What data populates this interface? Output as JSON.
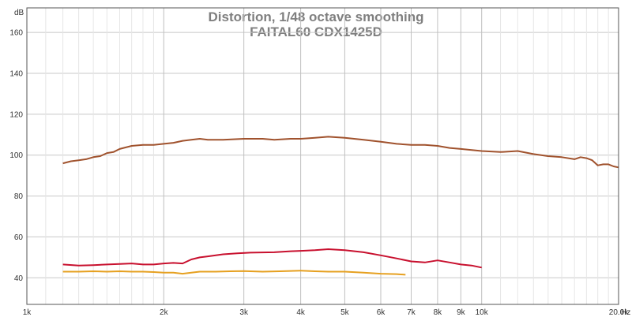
{
  "chart_data": {
    "type": "line",
    "title": "Distortion, 1/48 octave smoothing",
    "subtitle": "FAITAL60 CDX1425D",
    "ylabel": "dB",
    "xunit": "Hz",
    "xscale": "log",
    "xlim": [
      1000,
      20000
    ],
    "ylim": [
      27,
      172
    ],
    "grid": true,
    "yticks": [
      40,
      60,
      80,
      100,
      120,
      140,
      160
    ],
    "xticks": [
      {
        "value": 1000,
        "label": "1k"
      },
      {
        "value": 2000,
        "label": "2k"
      },
      {
        "value": 3000,
        "label": "3k"
      },
      {
        "value": 4000,
        "label": "4k"
      },
      {
        "value": 5000,
        "label": "5k"
      },
      {
        "value": 6000,
        "label": "6k"
      },
      {
        "value": 7000,
        "label": "7k"
      },
      {
        "value": 8000,
        "label": "8k"
      },
      {
        "value": 9000,
        "label": "9k"
      },
      {
        "value": 10000,
        "label": "10k"
      },
      {
        "value": 20000,
        "label": "20.0k"
      }
    ],
    "series": [
      {
        "color": "#a0522d",
        "points": [
          [
            1200,
            96
          ],
          [
            1250,
            97
          ],
          [
            1300,
            97.5
          ],
          [
            1350,
            98
          ],
          [
            1400,
            99
          ],
          [
            1450,
            99.5
          ],
          [
            1500,
            101
          ],
          [
            1550,
            101.5
          ],
          [
            1600,
            103
          ],
          [
            1700,
            104.5
          ],
          [
            1800,
            105
          ],
          [
            1900,
            105
          ],
          [
            2000,
            105.5
          ],
          [
            2100,
            106
          ],
          [
            2200,
            107
          ],
          [
            2300,
            107.5
          ],
          [
            2400,
            108
          ],
          [
            2500,
            107.5
          ],
          [
            2700,
            107.5
          ],
          [
            3000,
            108
          ],
          [
            3300,
            108
          ],
          [
            3500,
            107.5
          ],
          [
            3800,
            108
          ],
          [
            4000,
            108
          ],
          [
            4300,
            108.5
          ],
          [
            4600,
            109
          ],
          [
            5000,
            108.5
          ],
          [
            5500,
            107.5
          ],
          [
            6000,
            106.5
          ],
          [
            6500,
            105.5
          ],
          [
            7000,
            105
          ],
          [
            7500,
            105
          ],
          [
            8000,
            104.5
          ],
          [
            8500,
            103.5
          ],
          [
            9000,
            103
          ],
          [
            10000,
            102
          ],
          [
            11000,
            101.5
          ],
          [
            12000,
            102
          ],
          [
            13000,
            100.5
          ],
          [
            14000,
            99.5
          ],
          [
            15000,
            99
          ],
          [
            16000,
            98
          ],
          [
            16500,
            99
          ],
          [
            17000,
            98.5
          ],
          [
            17500,
            97.5
          ],
          [
            18000,
            95
          ],
          [
            18500,
            95.5
          ],
          [
            19000,
            95.5
          ],
          [
            19500,
            94.5
          ],
          [
            20000,
            94
          ]
        ]
      },
      {
        "color": "#c8102e",
        "points": [
          [
            1200,
            46.5
          ],
          [
            1300,
            46
          ],
          [
            1400,
            46.2
          ],
          [
            1500,
            46.5
          ],
          [
            1600,
            46.8
          ],
          [
            1700,
            47
          ],
          [
            1800,
            46.5
          ],
          [
            1900,
            46.5
          ],
          [
            2000,
            47
          ],
          [
            2100,
            47.3
          ],
          [
            2200,
            47
          ],
          [
            2300,
            49
          ],
          [
            2400,
            50
          ],
          [
            2500,
            50.5
          ],
          [
            2700,
            51.5
          ],
          [
            2900,
            52
          ],
          [
            3100,
            52.3
          ],
          [
            3500,
            52.5
          ],
          [
            3800,
            53
          ],
          [
            4000,
            53.2
          ],
          [
            4300,
            53.5
          ],
          [
            4600,
            54
          ],
          [
            5000,
            53.5
          ],
          [
            5500,
            52.5
          ],
          [
            6000,
            51
          ],
          [
            6500,
            49.5
          ],
          [
            7000,
            48
          ],
          [
            7500,
            47.5
          ],
          [
            8000,
            48.5
          ],
          [
            8500,
            47.5
          ],
          [
            9000,
            46.5
          ],
          [
            9500,
            46
          ],
          [
            10000,
            45
          ]
        ]
      },
      {
        "color": "#e6a020",
        "points": [
          [
            1200,
            43
          ],
          [
            1300,
            43
          ],
          [
            1400,
            43.2
          ],
          [
            1500,
            43
          ],
          [
            1600,
            43.2
          ],
          [
            1700,
            43
          ],
          [
            1800,
            43
          ],
          [
            1900,
            42.8
          ],
          [
            2000,
            42.5
          ],
          [
            2100,
            42.5
          ],
          [
            2200,
            42
          ],
          [
            2300,
            42.5
          ],
          [
            2400,
            43
          ],
          [
            2600,
            43
          ],
          [
            2800,
            43.2
          ],
          [
            3000,
            43.3
          ],
          [
            3300,
            43
          ],
          [
            3600,
            43.2
          ],
          [
            4000,
            43.5
          ],
          [
            4300,
            43.2
          ],
          [
            4600,
            43
          ],
          [
            5000,
            43
          ],
          [
            5500,
            42.5
          ],
          [
            6000,
            42
          ],
          [
            6500,
            41.8
          ],
          [
            6800,
            41.5
          ]
        ]
      }
    ]
  }
}
